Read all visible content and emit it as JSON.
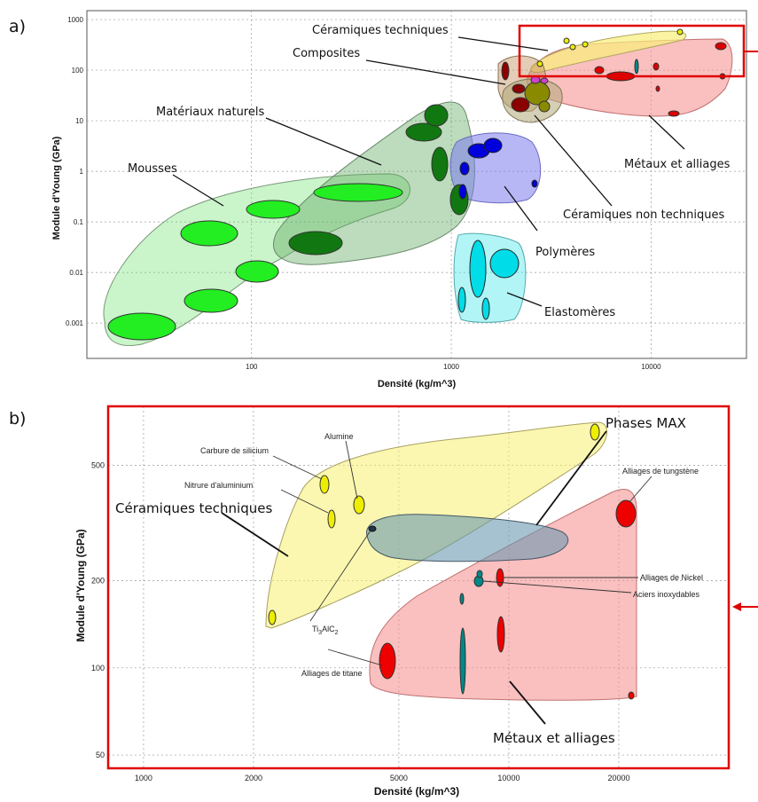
{
  "panel_a": {
    "letter": "a)",
    "xlabel": "Densité (kg/m^3)",
    "ylabel": "Module d'Young (GPa)",
    "xticks": [
      "100",
      "1000",
      "10000"
    ],
    "yticks": [
      "1000",
      "100",
      "10",
      "1",
      "0.1",
      "0.01",
      "0.001"
    ],
    "labels": {
      "ceramiques_techniques": "Céramiques techniques",
      "composites": "Composites",
      "materiaux_naturels": "Matériaux naturels",
      "mousses": "Mousses",
      "metaux": "Métaux et alliages",
      "ceramiques_non_techniques": "Céramiques non techniques",
      "polymeres": "Polymères",
      "elastomeres": "Elastomères"
    }
  },
  "panel_b": {
    "letter": "b)",
    "xlabel": "Densité (kg/m^3)",
    "ylabel": "Module d'Young (GPa)",
    "xticks": [
      "1000",
      "2000",
      "5000",
      "10000",
      "20000"
    ],
    "yticks": [
      "500",
      "200",
      "100",
      "50"
    ],
    "labels": {
      "carbure": "Carbure de silicium",
      "alumine": "Alumine",
      "nitrure": "Nitrure d'aluminium",
      "ceramiques_techniques": "Céramiques techniques",
      "phases_max": "Phases MAX",
      "tungstene": "Alliages de tungstène",
      "nickel": "Alliages de Nickel",
      "aciers": "Aciers inoxydables",
      "ti3alc2_a": "Ti",
      "ti3alc2_sub1": "3",
      "ti3alc2_b": "AlC",
      "ti3alc2_sub2": "2",
      "titane": "Alliages de titane",
      "metaux": "Métaux et alliages"
    }
  },
  "chart_data": [
    {
      "type": "scatter",
      "xlabel": "Densité (kg/m^3)",
      "ylabel": "Module d'Young (GPa)",
      "x_scale": "log",
      "y_scale": "log",
      "xlim": [
        15,
        30000
      ],
      "ylim": [
        0.0002,
        1500
      ],
      "grid": true,
      "series": [
        {
          "name": "Céramiques techniques",
          "points": [
            [
              2300,
              150
            ],
            [
              3100,
              420
            ],
            [
              3200,
              320
            ],
            [
              3900,
              360
            ],
            [
              15700,
              650
            ]
          ]
        },
        {
          "name": "Composites",
          "points": [
            [
              1700,
              80
            ],
            [
              2000,
              20
            ],
            [
              2200,
              40
            ]
          ]
        },
        {
          "name": "Matériaux naturels",
          "points": [
            [
              700,
              12
            ],
            [
              650,
              6
            ],
            [
              750,
              1
            ],
            [
              500,
              0.08
            ],
            [
              900,
              0.05
            ]
          ]
        },
        {
          "name": "Mousses",
          "points": [
            [
              25,
              0.0005
            ],
            [
              50,
              0.04
            ],
            [
              50,
              0.002
            ],
            [
              80,
              0.007
            ],
            [
              110,
              0.13
            ],
            [
              300,
              0.35
            ]
          ]
        },
        {
          "name": "Métaux et alliages",
          "points": [
            [
              4500,
              100
            ],
            [
              7800,
              200
            ],
            [
              8900,
              200
            ],
            [
              8900,
              130
            ],
            [
              19000,
              350
            ],
            [
              19000,
              80
            ],
            [
              11000,
              12
            ]
          ]
        },
        {
          "name": "Céramiques non techniques",
          "points": [
            [
              2400,
              40
            ],
            [
              2600,
              25
            ],
            [
              2200,
              20
            ]
          ]
        },
        {
          "name": "Polymères",
          "points": [
            [
              900,
              1.2
            ],
            [
              1000,
              3
            ],
            [
              1200,
              2
            ],
            [
              1400,
              3.5
            ],
            [
              2200,
              0.45
            ]
          ]
        },
        {
          "name": "Elastomères",
          "points": [
            [
              950,
              0.003
            ],
            [
              1200,
              0.01
            ],
            [
              1700,
              0.01
            ],
            [
              1500,
              0.002
            ]
          ]
        }
      ]
    },
    {
      "type": "scatter",
      "xlabel": "Densité (kg/m^3)",
      "ylabel": "Module d'Young (GPa)",
      "x_scale": "log",
      "y_scale": "log",
      "xlim": [
        800,
        40000
      ],
      "ylim": [
        45,
        800
      ],
      "grid": true,
      "series": [
        {
          "name": "Céramiques techniques",
          "points": [
            [
              2300,
              150
            ],
            [
              3100,
              440
            ],
            [
              3200,
              320
            ],
            [
              3900,
              370
            ],
            [
              15700,
              650
            ]
          ]
        },
        {
          "name": "Phases MAX",
          "points": [
            [
              4200,
              300
            ]
          ]
        },
        {
          "name": "Métaux et alliages",
          "points": [
            [
              4500,
              105
            ],
            [
              7200,
              100
            ],
            [
              7200,
              170
            ],
            [
              7800,
              200
            ],
            [
              8900,
              200
            ],
            [
              8900,
              130
            ],
            [
              19000,
              350
            ],
            [
              19000,
              80
            ]
          ]
        }
      ]
    }
  ]
}
